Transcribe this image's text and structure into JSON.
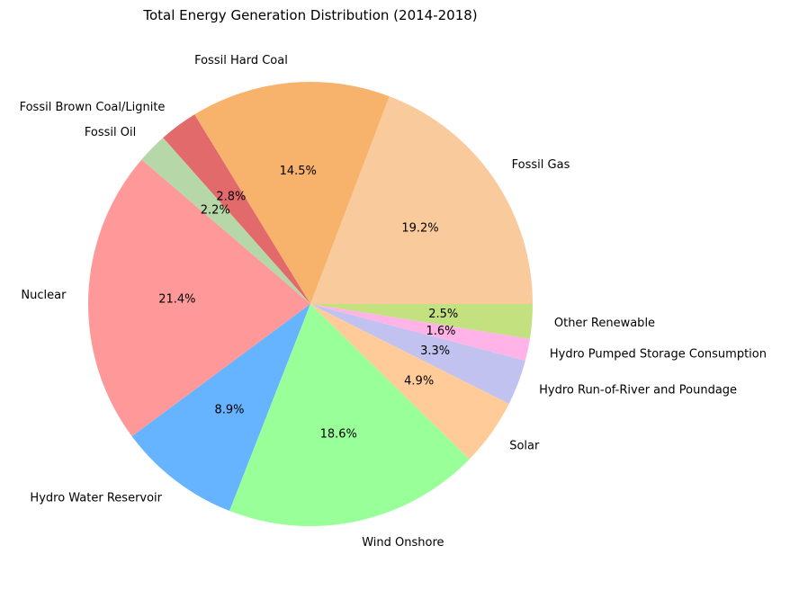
{
  "chart_data": {
    "type": "pie",
    "title": "Total Energy Generation Distribution (2014-2018)",
    "start_angle_deg": 0,
    "direction": "counterclockwise",
    "slices": [
      {
        "label": "Fossil Gas",
        "value": 19.2,
        "pct_label": "19.2%",
        "color": "#f9cb9c"
      },
      {
        "label": "Fossil Hard Coal",
        "value": 14.5,
        "pct_label": "14.5%",
        "color": "#f7b36b"
      },
      {
        "label": "Fossil Brown Coal/Lignite",
        "value": 2.8,
        "pct_label": "2.8%",
        "color": "#e36a6a"
      },
      {
        "label": "Fossil Oil",
        "value": 2.2,
        "pct_label": "2.2%",
        "color": "#b6d7a8"
      },
      {
        "label": "Nuclear",
        "value": 21.4,
        "pct_label": "21.4%",
        "color": "#ff9999"
      },
      {
        "label": "Hydro Water Reservoir",
        "value": 8.9,
        "pct_label": "8.9%",
        "color": "#66b3ff"
      },
      {
        "label": "Wind Onshore",
        "value": 18.6,
        "pct_label": "18.6%",
        "color": "#99ff99"
      },
      {
        "label": "Solar",
        "value": 4.9,
        "pct_label": "4.9%",
        "color": "#ffcc99"
      },
      {
        "label": "Hydro Run-of-River and Poundage",
        "value": 3.3,
        "pct_label": "3.3%",
        "color": "#c2c2f0"
      },
      {
        "label": "Hydro Pumped Storage Consumption",
        "value": 1.6,
        "pct_label": "1.6%",
        "color": "#ffb3e6"
      },
      {
        "label": "Other Renewable",
        "value": 2.5,
        "pct_label": "2.5%",
        "color": "#c4e17f"
      }
    ]
  }
}
